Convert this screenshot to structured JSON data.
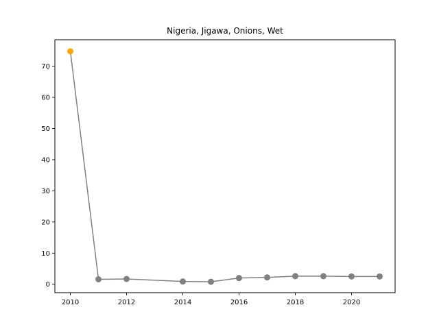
{
  "chart_data": {
    "type": "line",
    "title": "Nigeria, Jigawa, Onions, Wet",
    "xlabel": "",
    "ylabel": "",
    "x": [
      2010,
      2011,
      2012,
      2014,
      2015,
      2016,
      2017,
      2018,
      2019,
      2020,
      2021
    ],
    "series": [
      {
        "values": [
          74.8,
          1.6,
          1.7,
          0.9,
          0.8,
          2.0,
          2.2,
          2.6,
          2.6,
          2.5,
          2.5
        ],
        "line_color": "#808080",
        "marker_color": "#808080",
        "highlight_index": 0,
        "highlight_color": "#FFA500"
      }
    ],
    "xlim": [
      2009.45,
      2021.55
    ],
    "ylim": [
      -2.7,
      78.5
    ],
    "xticks": [
      2010,
      2012,
      2014,
      2016,
      2018,
      2020
    ],
    "yticks": [
      0,
      10,
      20,
      30,
      40,
      50,
      60,
      70
    ],
    "grid": false,
    "legend": "none"
  }
}
